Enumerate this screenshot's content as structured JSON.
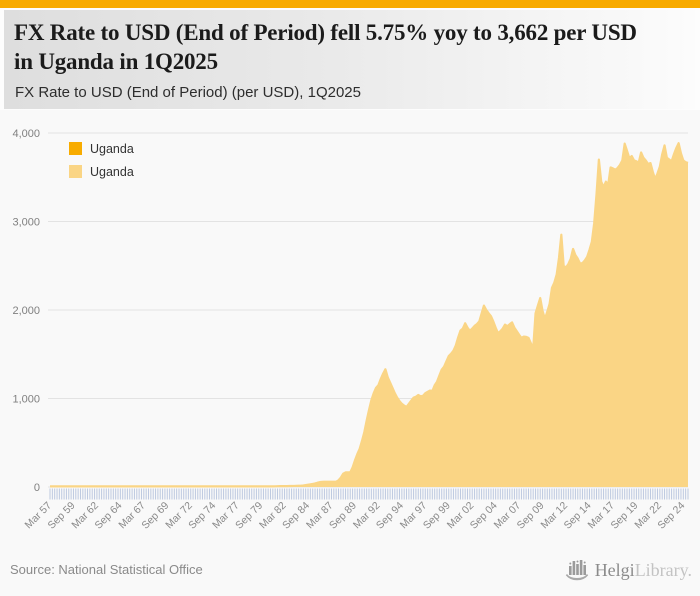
{
  "header": {
    "title": "FX Rate to USD (End of Period) fell 5.75% yoy to 3,662 per USD in Uganda in 1Q2025",
    "subtitle": "FX Rate to USD (End of Period) (per USD), 1Q2025"
  },
  "legend": [
    {
      "label": "Uganda",
      "color": "#F8AC00"
    },
    {
      "label": "Uganda",
      "color": "#FAD585"
    }
  ],
  "colors": {
    "accent_bar": "#F8AB00",
    "area_fill": "#FAD585",
    "gridline": "#e3e3e3",
    "axis_label": "#8a8a8a",
    "minor_tick": "#bdc9e0"
  },
  "chart_data": {
    "type": "area",
    "title": "FX Rate to USD (End of Period) (per USD), 1Q2025",
    "xlabel": "",
    "ylabel": "per USD",
    "ylim": [
      0,
      4000
    ],
    "grid": true,
    "legend_position": "top-left",
    "y_ticks": [
      "0",
      "1,000",
      "2,000",
      "3,000",
      "4,000"
    ],
    "y_tick_values": [
      0,
      1000,
      2000,
      3000,
      4000
    ],
    "x_tick_labels": [
      "Mar 57",
      "Sep 59",
      "Mar 62",
      "Sep 64",
      "Mar 67",
      "Sep 69",
      "Mar 72",
      "Sep 74",
      "Mar 77",
      "Sep 79",
      "Mar 82",
      "Sep 84",
      "Mar 87",
      "Sep 89",
      "Mar 92",
      "Sep 94",
      "Mar 97",
      "Sep 99",
      "Mar 02",
      "Sep 04",
      "Mar 07",
      "Sep 09",
      "Mar 12",
      "Sep 14",
      "Mar 17",
      "Sep 19",
      "Mar 22",
      "Sep 24"
    ],
    "x_tick_every_n_points": 10,
    "frequency": "quarterly",
    "x_start": "1957Q1",
    "x_end": "2025Q1",
    "latest_value": "3,662",
    "yoy_change": "-5.75%",
    "series": [
      {
        "name": "Uganda",
        "color": "#FAD585",
        "values": [
          7,
          7,
          7,
          7,
          7,
          7,
          7,
          7,
          7,
          7,
          7,
          7,
          7,
          7,
          7,
          7,
          7,
          7,
          7,
          7,
          7,
          7,
          7,
          7,
          7,
          7,
          7,
          7,
          7,
          7,
          7,
          7,
          7,
          7,
          7,
          7,
          7,
          7,
          7,
          7,
          7,
          7,
          7,
          7,
          7,
          7,
          7,
          7,
          7,
          7,
          7,
          7,
          7,
          7,
          7,
          7,
          7,
          7,
          7,
          7,
          7,
          7,
          7,
          7,
          7,
          7,
          7,
          7,
          7,
          7,
          7,
          7,
          7,
          7,
          7,
          7,
          7,
          7,
          7,
          7,
          7,
          7,
          7,
          7,
          7,
          7,
          7,
          7,
          7,
          7,
          7,
          7,
          7,
          7,
          7,
          7,
          8,
          9,
          10,
          10,
          10,
          10,
          11,
          11,
          12,
          13,
          14,
          15,
          18,
          22,
          26,
          30,
          35,
          40,
          48,
          55,
          58,
          60,
          60,
          60,
          60,
          60,
          60,
          76,
          106,
          150,
          165,
          165,
          165,
          220,
          300,
          370,
          430,
          520,
          620,
          750,
          870,
          980,
          1060,
          1120,
          1150,
          1220,
          1280,
          1330,
          1240,
          1180,
          1120,
          1060,
          1010,
          970,
          940,
          920,
          905,
          940,
          975,
          1009,
          1020,
          1040,
          1025,
          1030,
          1060,
          1075,
          1090,
          1085,
          1150,
          1190,
          1260,
          1326,
          1360,
          1420,
          1480,
          1506,
          1540,
          1600,
          1690,
          1767,
          1790,
          1850,
          1800,
          1765,
          1790,
          1820,
          1840,
          1870,
          1960,
          2050,
          2000,
          1963,
          1930,
          1870,
          1800,
          1738,
          1760,
          1790,
          1835,
          1817,
          1840,
          1860,
          1800,
          1760,
          1720,
          1685,
          1700,
          1697,
          1685,
          1625,
          1565,
          1962,
          2050,
          2135,
          1990,
          1900,
          1980,
          2070,
          2250,
          2308,
          2400,
          2590,
          2850,
          2500,
          2480,
          2520,
          2580,
          2690,
          2620,
          2580,
          2525,
          2530,
          2560,
          2600,
          2680,
          2771,
          2980,
          3310,
          3700,
          3450,
          3390,
          3450,
          3420,
          3611,
          3600,
          3585,
          3605,
          3640,
          3690,
          3880,
          3800,
          3715,
          3740,
          3690,
          3680,
          3666,
          3780,
          3720,
          3690,
          3650,
          3660,
          3560,
          3480,
          3544,
          3620,
          3760,
          3860,
          3720,
          3700,
          3680,
          3760,
          3830,
          3885,
          3770,
          3690,
          3670,
          3662
        ]
      }
    ]
  },
  "footer": {
    "source": "Source: National Statistical Office",
    "logo_primary": "Helgi",
    "logo_secondary": "Library."
  }
}
